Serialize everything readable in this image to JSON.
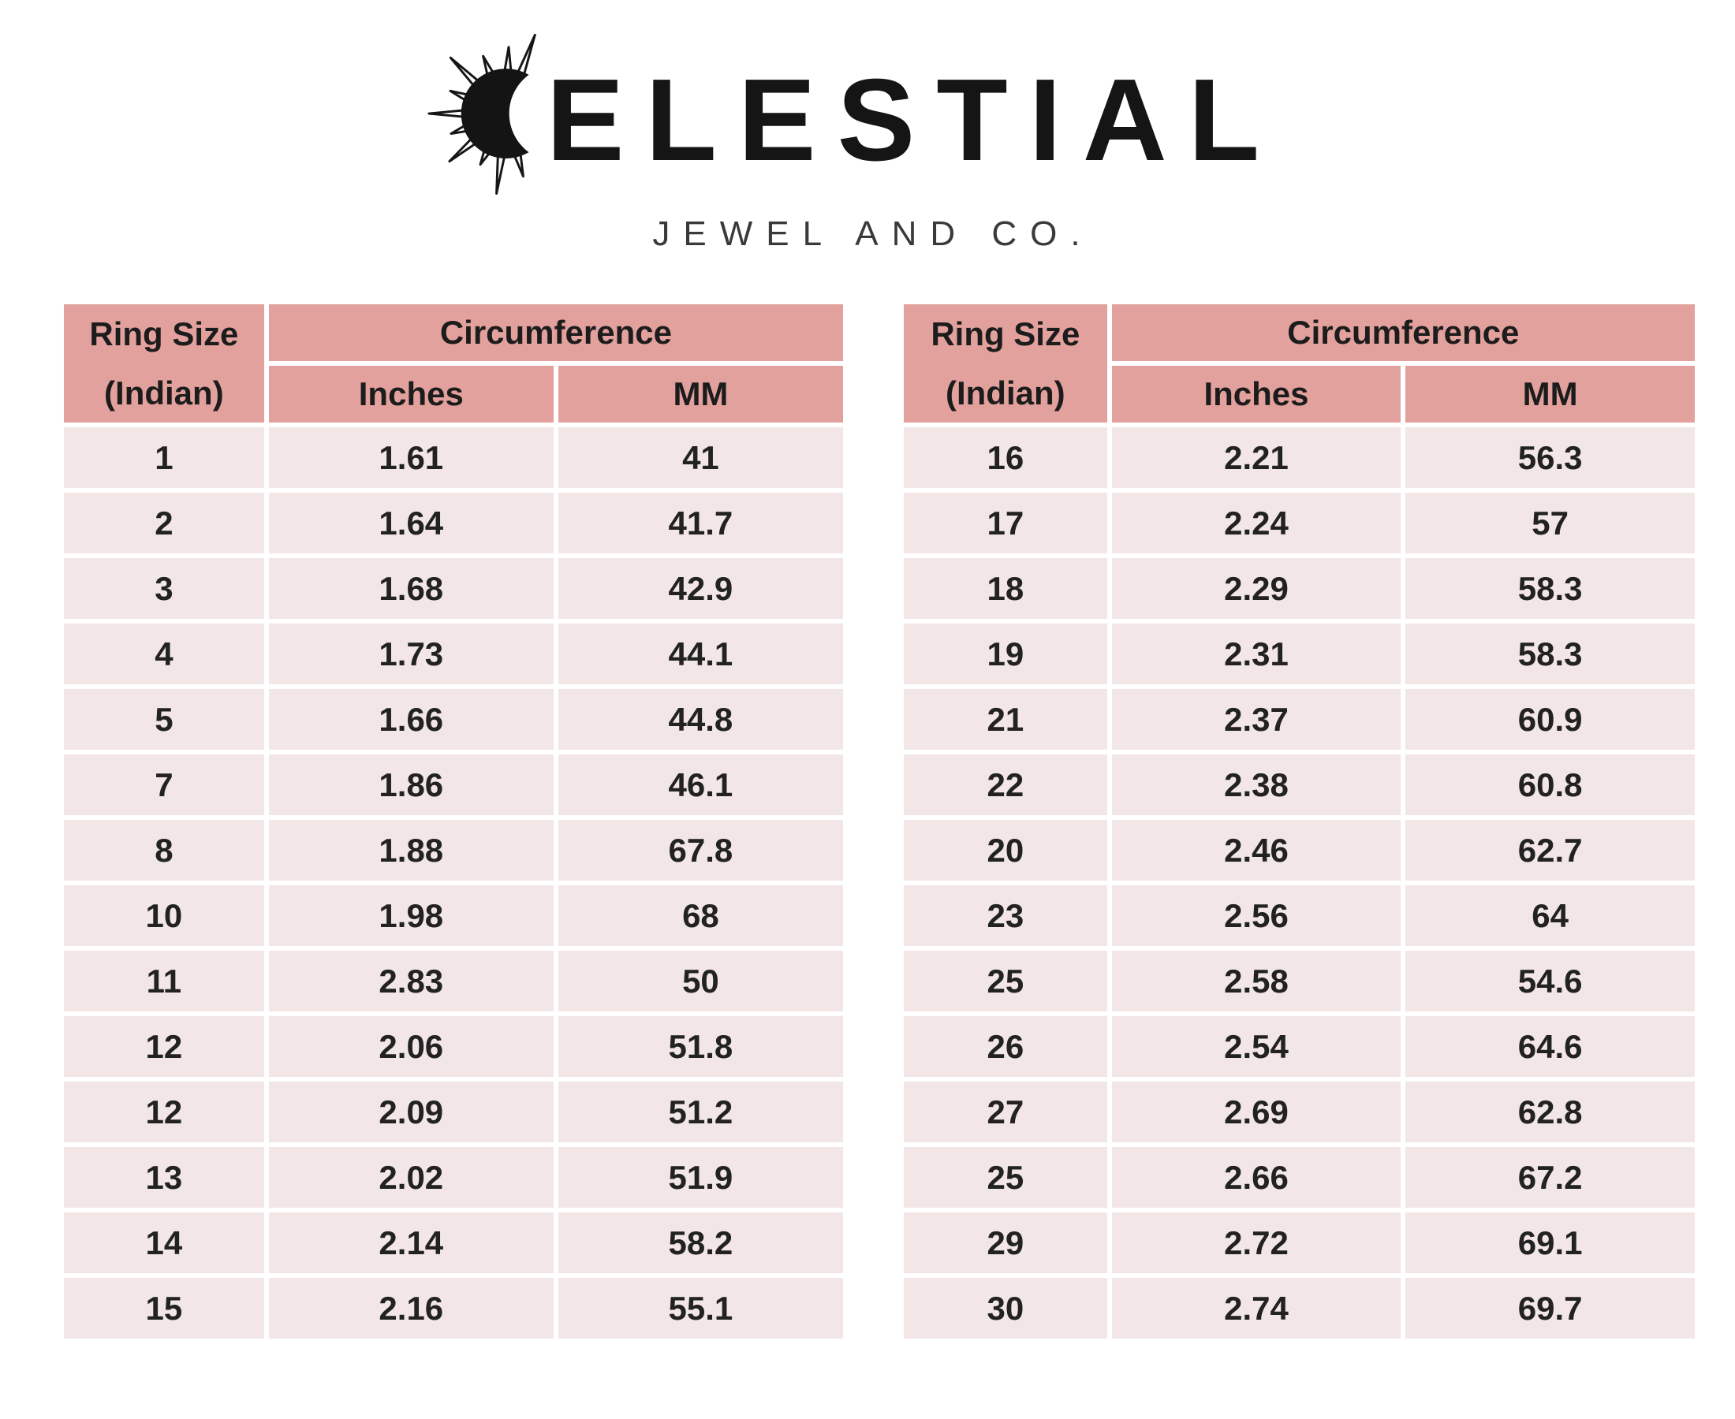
{
  "brand": {
    "wordmark_full": "CELESTIAL",
    "wordmark_rest": "ELESTIAL",
    "tagline": "JEWEL AND CO.",
    "icon": "crescent-moon-with-sun-rays"
  },
  "colors": {
    "header_bg": "#e2a19c",
    "cell_bg": "#f2e7e6",
    "page_bg": "#ffffff",
    "text": "#1d1d1d",
    "tagline_text": "#3a3a3a"
  },
  "table_headers": {
    "ring_size_line1": "Ring Size",
    "ring_size_line2": "(Indian)",
    "circumference": "Circumference",
    "col_inches": "Inches",
    "col_mm": "MM"
  },
  "left_table": {
    "rows": [
      [
        "1",
        "1.61",
        "41"
      ],
      [
        "2",
        "1.64",
        "41.7"
      ],
      [
        "3",
        "1.68",
        "42.9"
      ],
      [
        "4",
        "1.73",
        "44.1"
      ],
      [
        "5",
        "1.66",
        "44.8"
      ],
      [
        "7",
        "1.86",
        "46.1"
      ],
      [
        "8",
        "1.88",
        "67.8"
      ],
      [
        "10",
        "1.98",
        "68"
      ],
      [
        "11",
        "2.83",
        "50"
      ],
      [
        "12",
        "2.06",
        "51.8"
      ],
      [
        "12",
        "2.09",
        "51.2"
      ],
      [
        "13",
        "2.02",
        "51.9"
      ],
      [
        "14",
        "2.14",
        "58.2"
      ],
      [
        "15",
        "2.16",
        "55.1"
      ]
    ]
  },
  "right_table": {
    "rows": [
      [
        "16",
        "2.21",
        "56.3"
      ],
      [
        "17",
        "2.24",
        "57"
      ],
      [
        "18",
        "2.29",
        "58.3"
      ],
      [
        "19",
        "2.31",
        "58.3"
      ],
      [
        "21",
        "2.37",
        "60.9"
      ],
      [
        "22",
        "2.38",
        "60.8"
      ],
      [
        "20",
        "2.46",
        "62.7"
      ],
      [
        "23",
        "2.56",
        "64"
      ],
      [
        "25",
        "2.58",
        "54.6"
      ],
      [
        "26",
        "2.54",
        "64.6"
      ],
      [
        "27",
        "2.69",
        "62.8"
      ],
      [
        "25",
        "2.66",
        "67.2"
      ],
      [
        "29",
        "2.72",
        "69.1"
      ],
      [
        "30",
        "2.74",
        "69.7"
      ]
    ]
  }
}
